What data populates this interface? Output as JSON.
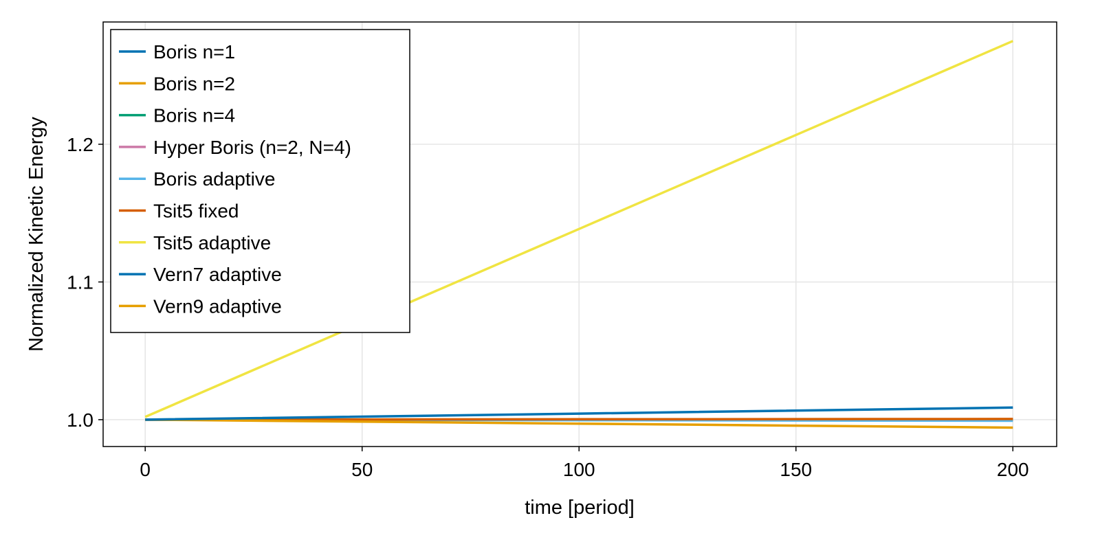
{
  "chart_data": {
    "type": "line",
    "title": "",
    "xlabel": "time [period]",
    "ylabel": "Normalized Kinetic Energy",
    "xlim": [
      -9.7,
      210.1
    ],
    "ylim": [
      0.9805,
      1.2888
    ],
    "xticks": [
      0,
      50,
      100,
      150,
      200
    ],
    "xtick_labels": [
      "0",
      "50",
      "100",
      "150",
      "200"
    ],
    "yticks": [
      1.0,
      1.1,
      1.2
    ],
    "ytick_labels": [
      "1.0",
      "1.1",
      "1.2"
    ],
    "grid": true,
    "legend_position": "top-left",
    "x": [
      0,
      100,
      200
    ],
    "series": [
      {
        "name": "Boris n=1",
        "color": "#0072B2",
        "values": [
          1.0,
          1.0044,
          1.0088
        ]
      },
      {
        "name": "Boris n=2",
        "color": "#E69F00",
        "values": [
          1.0,
          0.9971,
          0.9942
        ]
      },
      {
        "name": "Boris n=4",
        "color": "#009E73",
        "values": [
          1.0,
          1.0,
          1.0
        ]
      },
      {
        "name": "Hyper Boris (n=2, N=4)",
        "color": "#CC79A7",
        "values": [
          1.0,
          1.0,
          1.0
        ]
      },
      {
        "name": "Boris adaptive",
        "color": "#56B4E9",
        "values": [
          1.0,
          0.9996,
          0.9992
        ]
      },
      {
        "name": "Tsit5 fixed",
        "color": "#D55E00",
        "values": [
          1.0,
          1.0003,
          1.0005
        ]
      },
      {
        "name": "Tsit5 adaptive",
        "color": "#F0E442",
        "values": [
          1.002,
          1.1385,
          1.275
        ]
      },
      {
        "name": "Vern7 adaptive",
        "color": "#0072B2",
        "values": [
          1.0,
          1.0,
          1.0
        ]
      },
      {
        "name": "Vern9 adaptive",
        "color": "#E69F00",
        "values": [
          1.0,
          1.0,
          1.0
        ]
      }
    ]
  }
}
